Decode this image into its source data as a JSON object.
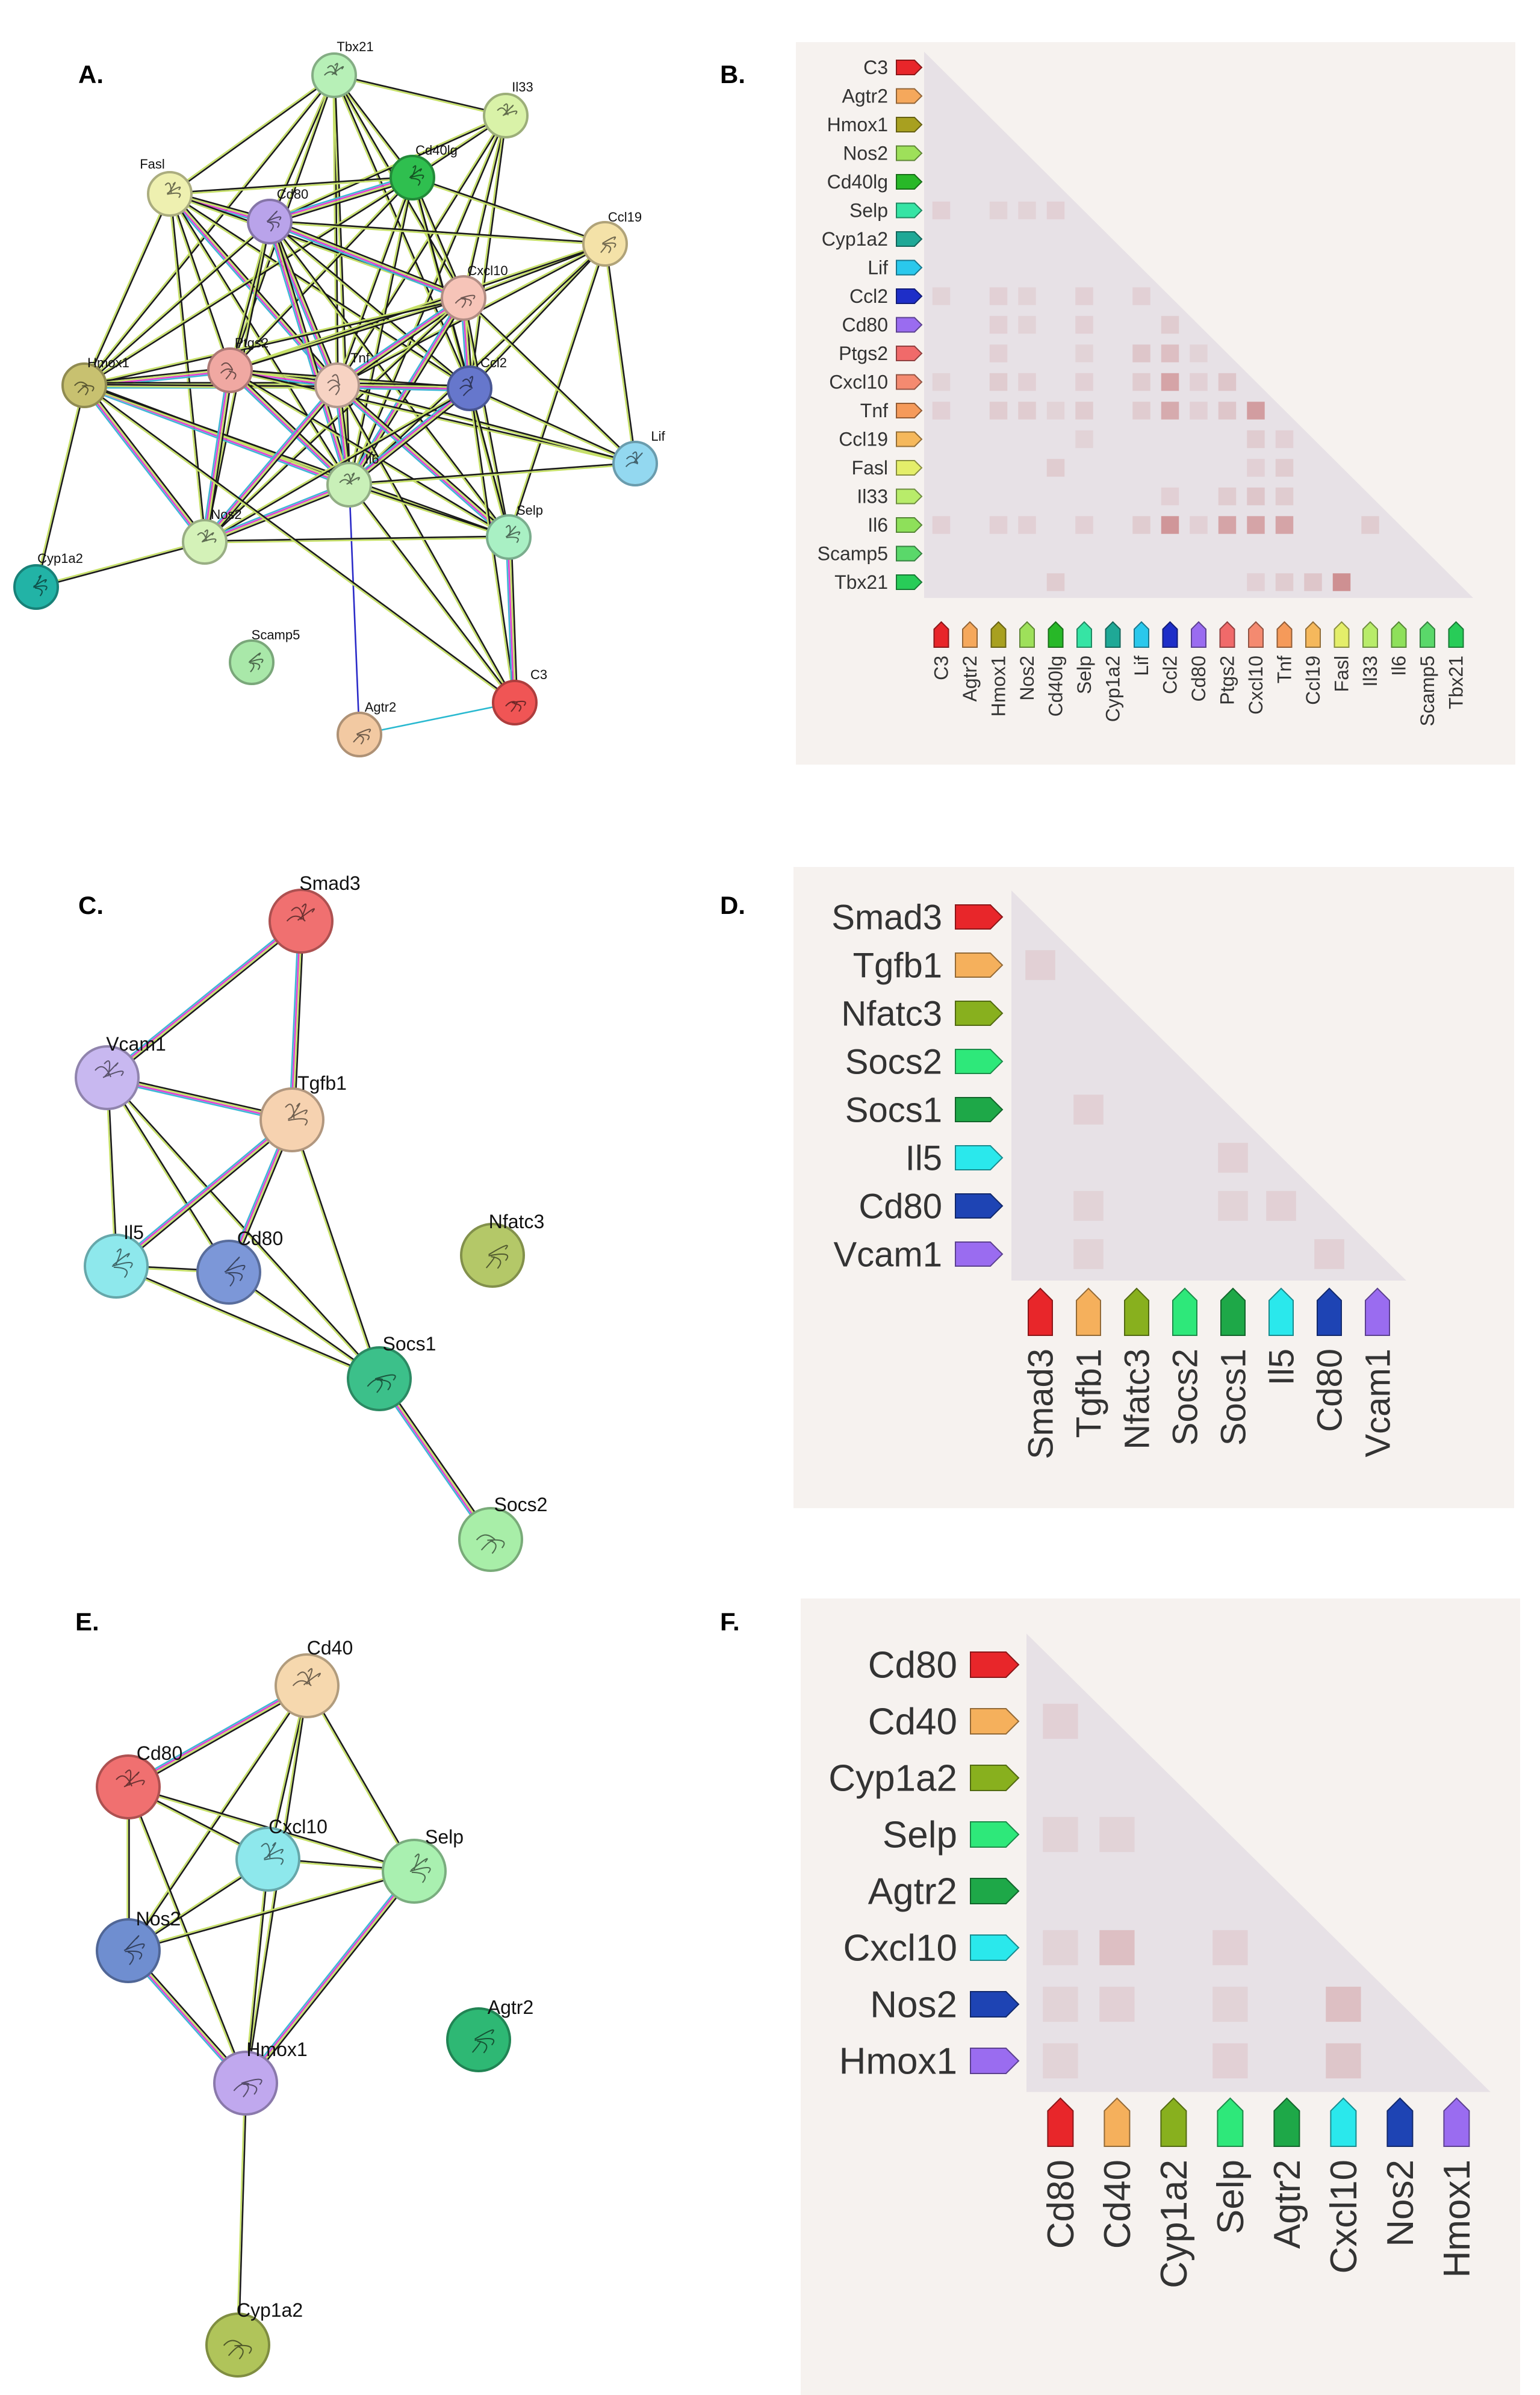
{
  "panels": {
    "A": {
      "label": "A."
    },
    "B": {
      "label": "B."
    },
    "C": {
      "label": "C."
    },
    "D": {
      "label": "D."
    },
    "E": {
      "label": "E."
    },
    "F": {
      "label": "F."
    }
  },
  "network_A": {
    "nodes": [
      {
        "id": "Tbx21",
        "color": "#b7f0b7"
      },
      {
        "id": "Il33",
        "color": "#d9f2a8"
      },
      {
        "id": "Fasl",
        "color": "#eef0b0"
      },
      {
        "id": "Cd40lg",
        "color": "#2fbf4f"
      },
      {
        "id": "Cd80",
        "color": "#b9a3ea"
      },
      {
        "id": "Ccl19",
        "color": "#f4e2a8"
      },
      {
        "id": "Cxcl10",
        "color": "#f6c4b8"
      },
      {
        "id": "Hmox1",
        "color": "#c8c170"
      },
      {
        "id": "Ptgs2",
        "color": "#f0a8a2"
      },
      {
        "id": "Tnf",
        "color": "#f7d3c3"
      },
      {
        "id": "Ccl2",
        "color": "#6677cc"
      },
      {
        "id": "Lif",
        "color": "#93d8f0"
      },
      {
        "id": "Il6",
        "color": "#c9f0b8"
      },
      {
        "id": "Nos2",
        "color": "#d4f2b8"
      },
      {
        "id": "Selp",
        "color": "#a9f0c4"
      },
      {
        "id": "Cyp1a2",
        "color": "#22b3a6"
      },
      {
        "id": "Scamp5",
        "color": "#a9e8a9"
      },
      {
        "id": "Agtr2",
        "color": "#f2c9a2"
      },
      {
        "id": "C3",
        "color": "#f05555"
      }
    ]
  },
  "matrix_B": {
    "genes": [
      "C3",
      "Agtr2",
      "Hmox1",
      "Nos2",
      "Cd40lg",
      "Selp",
      "Cyp1a2",
      "Lif",
      "Ccl2",
      "Cd80",
      "Ptgs2",
      "Cxcl10",
      "Tnf",
      "Ccl19",
      "Fasl",
      "Il33",
      "Il6",
      "Scamp5",
      "Tbx21"
    ],
    "colors": [
      "#e8262a",
      "#f5a85c",
      "#a8a020",
      "#9ee05a",
      "#28b828",
      "#36e4a4",
      "#1fa896",
      "#2ac8ec",
      "#1e2ec8",
      "#9a6cf0",
      "#f06a6a",
      "#f48a70",
      "#f59a5a",
      "#f5b85c",
      "#e4ee6a",
      "#b8ec6a",
      "#8ee05a",
      "#5ad86a",
      "#28cc58"
    ]
  },
  "network_C": {
    "nodes": [
      {
        "id": "Smad3",
        "color": "#f07070"
      },
      {
        "id": "Vcam1",
        "color": "#c8b8f0"
      },
      {
        "id": "Tgfb1",
        "color": "#f6d2b0"
      },
      {
        "id": "Il5",
        "color": "#8ee8ec"
      },
      {
        "id": "Cd80",
        "color": "#7c97d8"
      },
      {
        "id": "Nfatc3",
        "color": "#b4c868"
      },
      {
        "id": "Socs1",
        "color": "#3cc08a"
      },
      {
        "id": "Socs2",
        "color": "#a8eea8"
      }
    ]
  },
  "matrix_D": {
    "genes": [
      "Smad3",
      "Tgfb1",
      "Nfatc3",
      "Socs2",
      "Socs1",
      "Il5",
      "Cd80",
      "Vcam1"
    ],
    "colors": [
      "#e8262a",
      "#f5b05c",
      "#88b01e",
      "#2ee87a",
      "#1ea848",
      "#2ae8ec",
      "#1e44b4",
      "#9a6cf0"
    ]
  },
  "network_E": {
    "nodes": [
      {
        "id": "Cd40",
        "color": "#f6d8ae"
      },
      {
        "id": "Cd80",
        "color": "#f07070"
      },
      {
        "id": "Cxcl10",
        "color": "#8ee8ec"
      },
      {
        "id": "Selp",
        "color": "#a9f0b0"
      },
      {
        "id": "Nos2",
        "color": "#6f8ed0"
      },
      {
        "id": "Agtr2",
        "color": "#2eb874"
      },
      {
        "id": "Hmox1",
        "color": "#c0a8ee"
      },
      {
        "id": "Cyp1a2",
        "color": "#b0c45a"
      }
    ]
  },
  "matrix_F": {
    "genes": [
      "Cd80",
      "Cd40",
      "Cyp1a2",
      "Selp",
      "Agtr2",
      "Cxcl10",
      "Nos2",
      "Hmox1"
    ],
    "colors": [
      "#e8262a",
      "#f5b05c",
      "#88b01e",
      "#2ee87a",
      "#1ea848",
      "#2ae8ec",
      "#1e44b4",
      "#9a6cf0"
    ]
  }
}
